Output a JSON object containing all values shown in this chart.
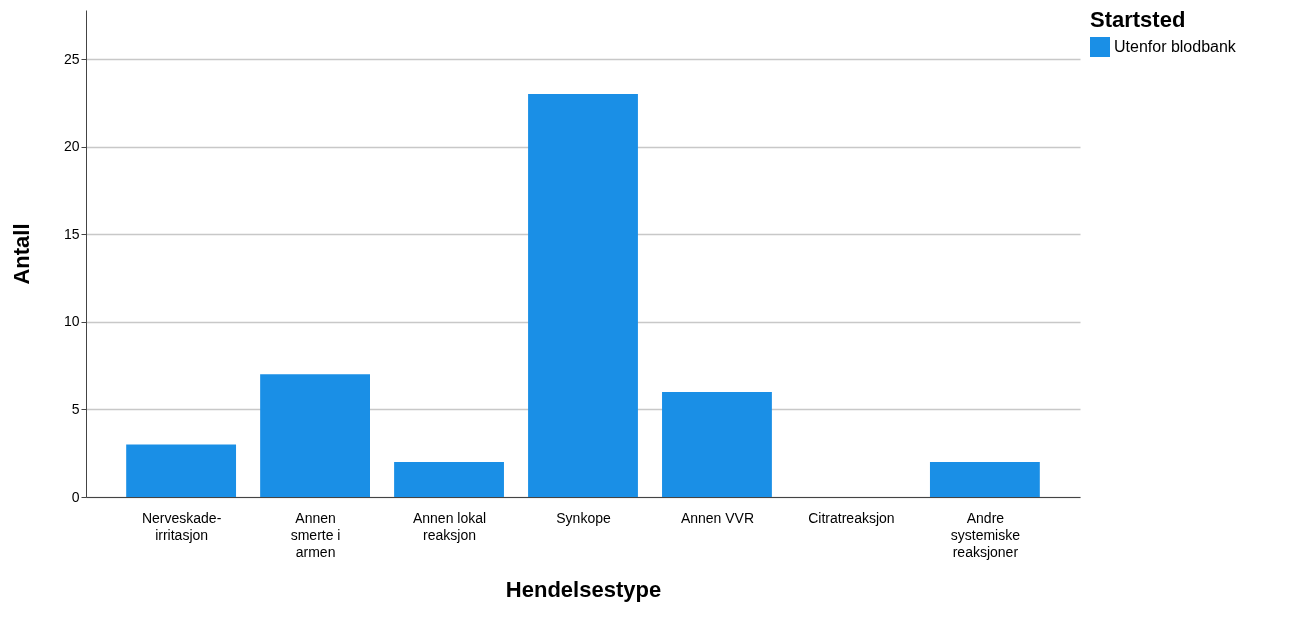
{
  "chart_data": {
    "type": "bar",
    "xlabel": "Hendelsestype",
    "ylabel": "Antall",
    "legend_title": "Startsted",
    "categories": [
      "Nerveskade-irritasjon",
      "Annen smerte i armen",
      "Annen lokal reaksjon",
      "Synkope",
      "Annen VVR",
      "Citratreaksjon",
      "Andre systemiske reaksjoner"
    ],
    "series": [
      {
        "name": "Utenfor blodbank",
        "color": "#1a8fe6",
        "values": [
          3,
          7,
          2,
          23,
          6,
          0,
          2
        ]
      }
    ],
    "ylim": [
      0,
      27.8
    ],
    "yticks": [
      0,
      5,
      10,
      15,
      20,
      25
    ],
    "grid": "y",
    "legend": "top right"
  }
}
